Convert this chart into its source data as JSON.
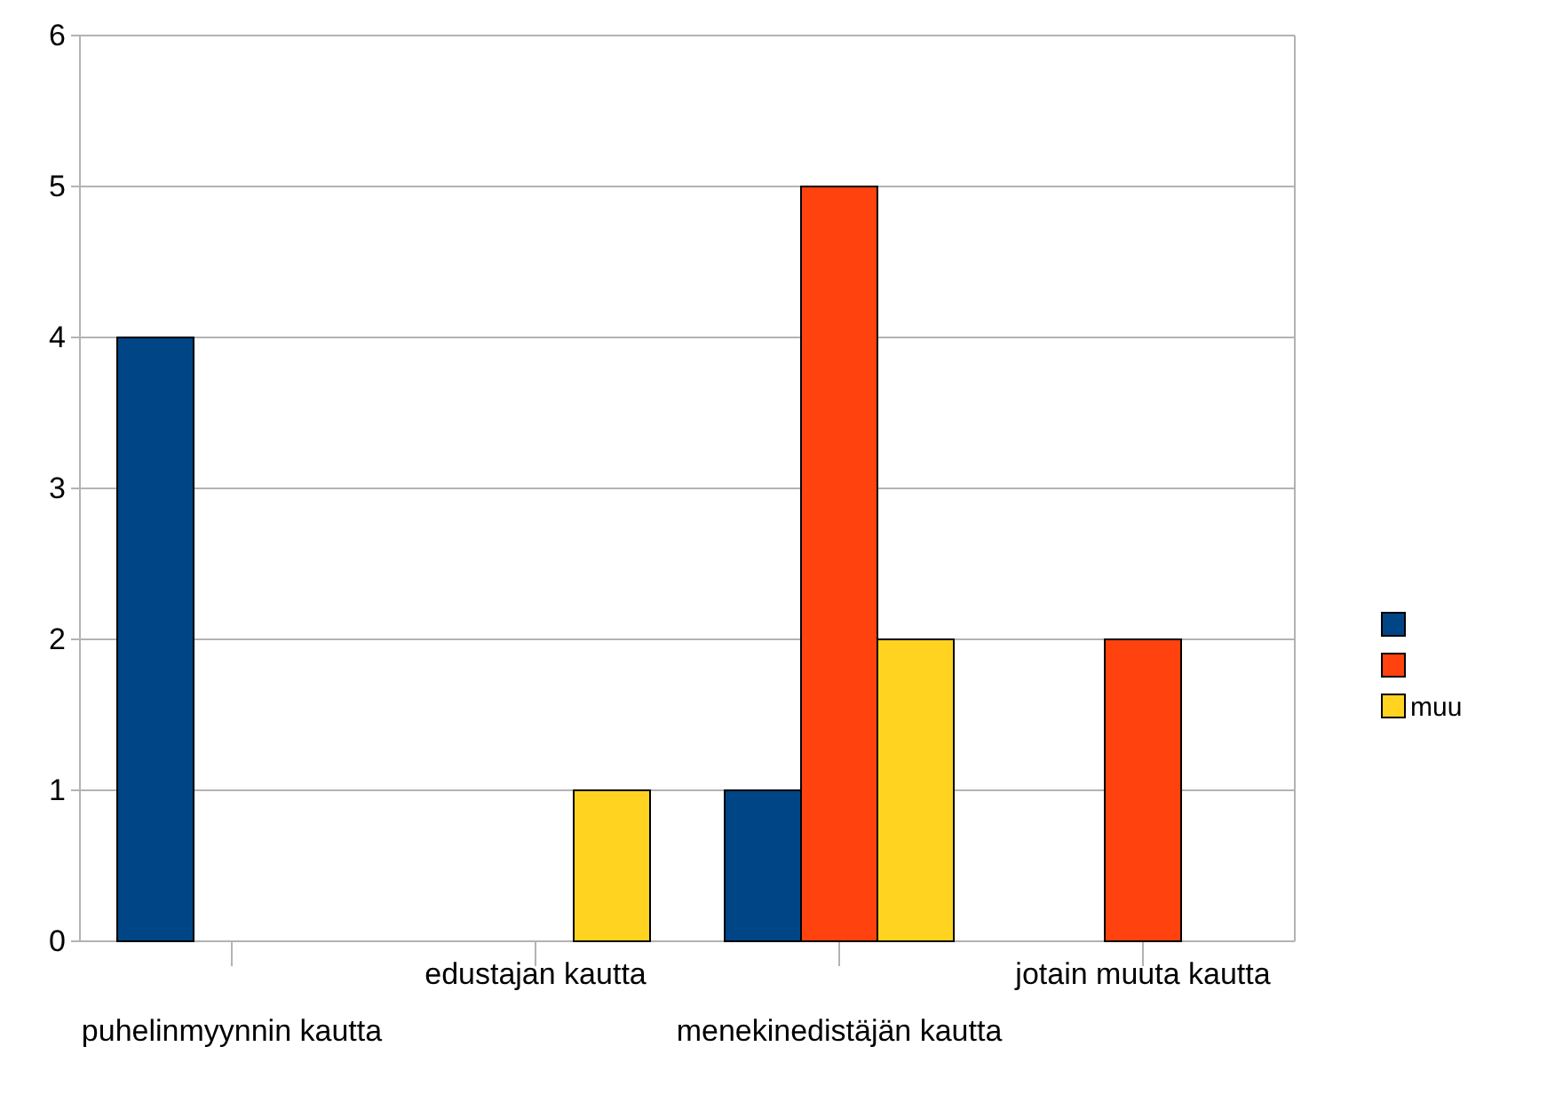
{
  "chart_data": {
    "type": "bar",
    "categories": [
      "puhelinmyynnin kautta",
      "edustajan kautta",
      "menekinedistäjän kautta",
      "jotain muuta kautta"
    ],
    "series": [
      {
        "color": "#004586",
        "values": [
          4,
          0,
          1,
          0
        ]
      },
      {
        "color": "#ff420e",
        "values": [
          0,
          0,
          5,
          2
        ]
      },
      {
        "name": "muu",
        "color": "#ffd320",
        "values": [
          0,
          1,
          2,
          0
        ]
      }
    ],
    "ylim": [
      0,
      6
    ],
    "yticks": [
      0,
      1,
      2,
      3,
      4,
      5,
      6
    ],
    "grid": "y",
    "legend": "right"
  }
}
